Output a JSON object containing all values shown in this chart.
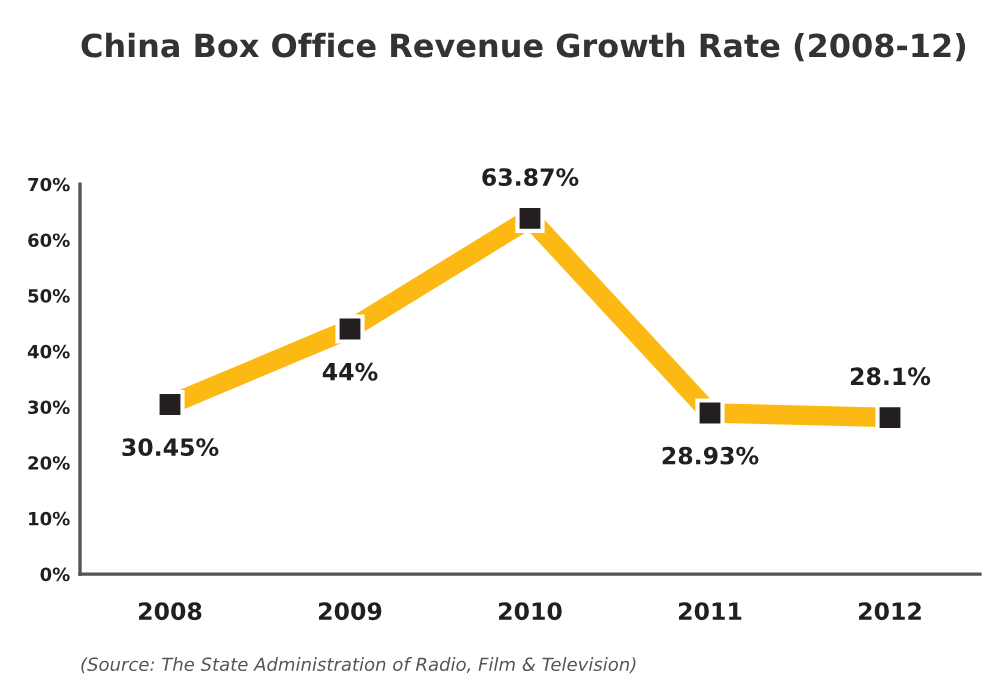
{
  "chart_data": {
    "type": "line",
    "title": "China Box Office Revenue Growth Rate (2008-12)",
    "categories": [
      "2008",
      "2009",
      "2010",
      "2011",
      "2012"
    ],
    "series": [
      {
        "color": "#fdb913",
        "values": [
          30.45,
          44,
          63.87,
          28.93,
          28.1
        ]
      }
    ],
    "ylim": [
      0,
      70
    ],
    "yticks": [
      {
        "value": 0,
        "label": "0%"
      },
      {
        "value": 10,
        "label": "10%"
      },
      {
        "value": 20,
        "label": "20%"
      },
      {
        "value": 30,
        "label": "30%"
      },
      {
        "value": 40,
        "label": "40%"
      },
      {
        "value": 50,
        "label": "50%"
      },
      {
        "value": 60,
        "label": "60%"
      },
      {
        "value": 70,
        "label": "70%"
      }
    ],
    "value_labels": [
      "30.45%",
      "44%",
      "63.87%",
      "28.93%",
      "28.1%"
    ],
    "marker": "square",
    "grid": false,
    "legend": false,
    "annotations": [
      "(Source: The State Administration of Radio, Film & Television)"
    ]
  }
}
